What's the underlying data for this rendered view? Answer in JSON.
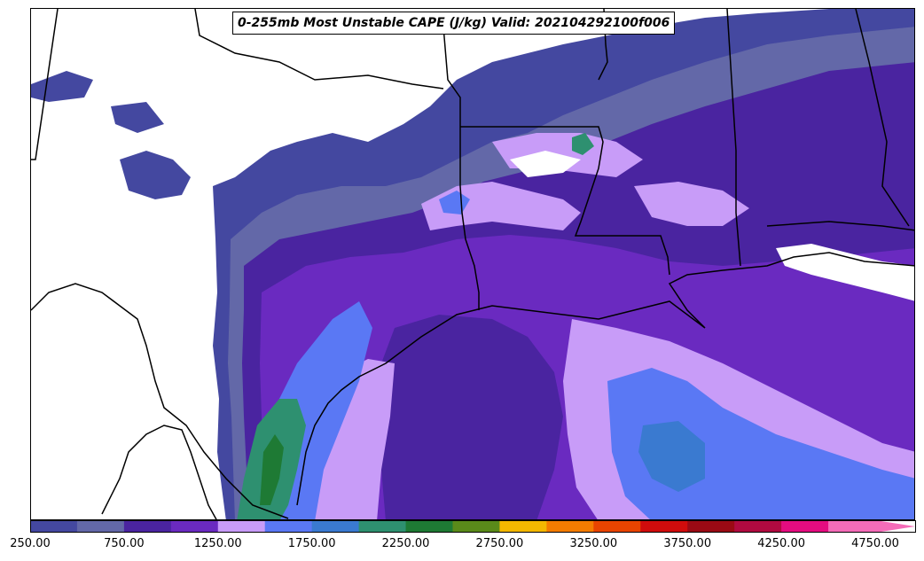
{
  "title": "0-255mb Most Unstable CAPE (J/kg) Valid: 202104292100f006",
  "colorbar": {
    "levels": [
      250,
      500,
      750,
      1000,
      1250,
      1500,
      1750,
      2000,
      2250,
      2500,
      2750,
      3000,
      3250,
      3500,
      3750,
      4000,
      4250,
      4500,
      4750
    ],
    "colors": [
      "#4448a0",
      "#6368a8",
      "#4a24a0",
      "#6a2ac0",
      "#c89cf8",
      "#5a78f4",
      "#3a7ad0",
      "#2e9070",
      "#1e7a34",
      "#5a8a1a",
      "#f4b800",
      "#f47c00",
      "#e84400",
      "#d00c0c",
      "#9a0a14",
      "#b00a40",
      "#e40c80",
      "#f46cb8"
    ],
    "tick_labels": [
      "250.00",
      "750.00",
      "1250.00",
      "1750.00",
      "2250.00",
      "2750.00",
      "3250.00",
      "3750.00",
      "4250.00",
      "4750.00"
    ],
    "extend": "max"
  }
}
